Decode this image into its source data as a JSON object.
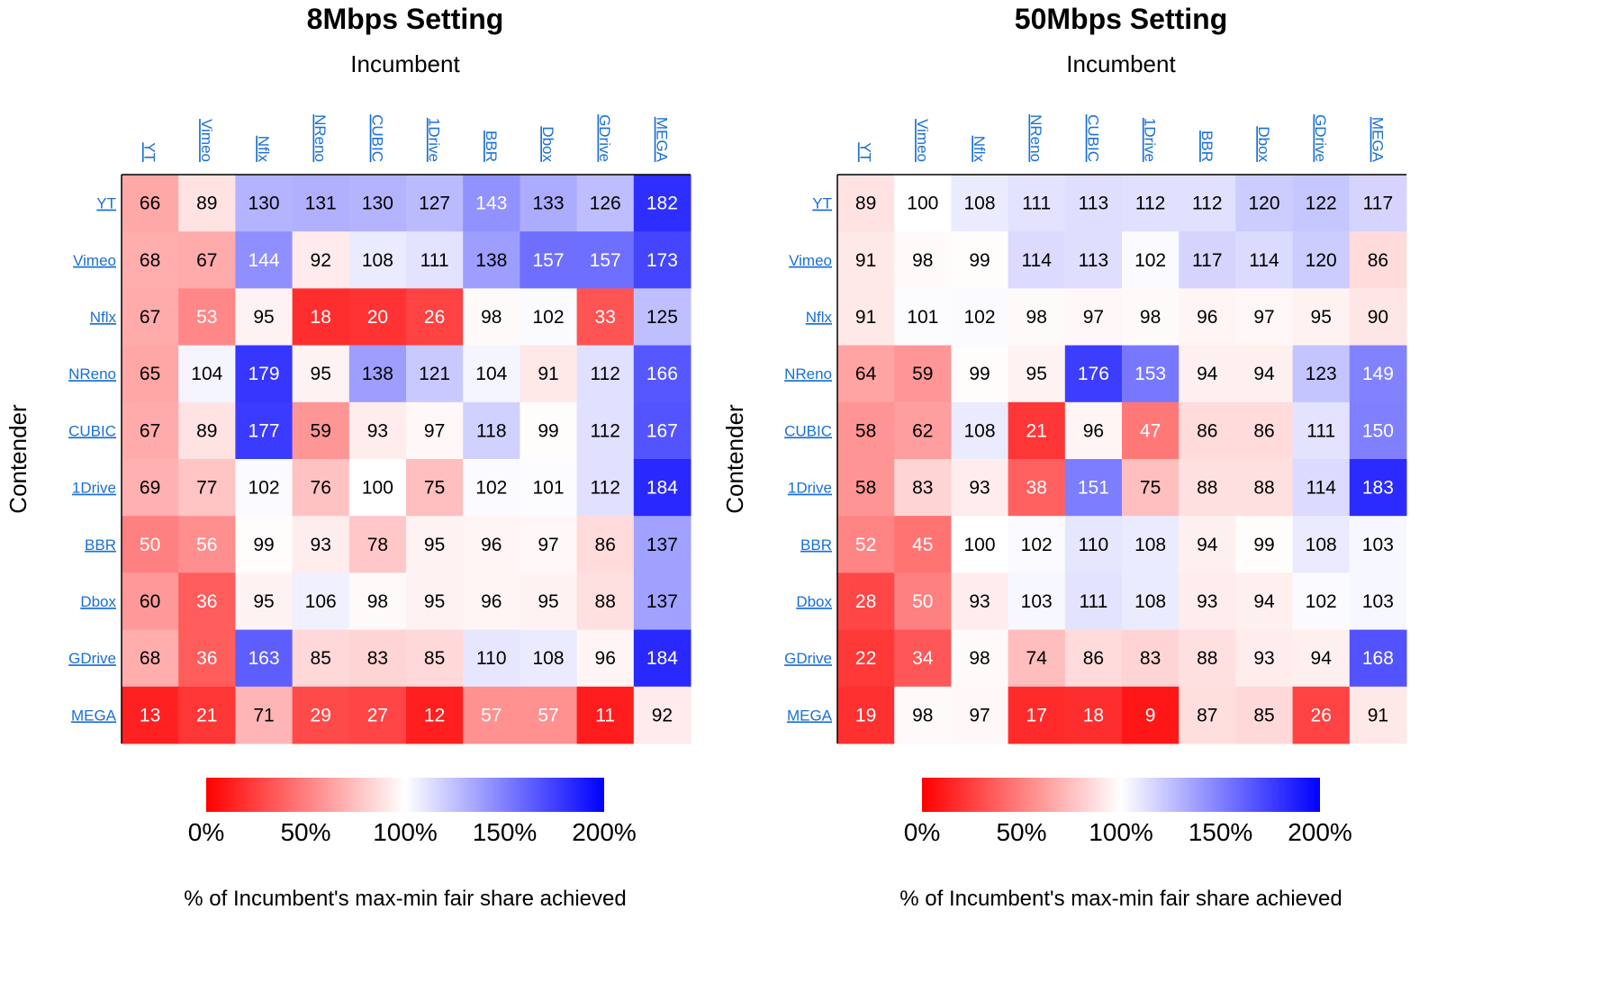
{
  "chart_data": [
    {
      "type": "heatmap",
      "title": "8Mbps Setting",
      "xlabel": "Incumbent",
      "ylabel": "Contender",
      "x_categories": [
        "YT",
        "Vimeo",
        "Nflx",
        "NReno",
        "CUBIC",
        "1Drive",
        "BBR",
        "Dbox",
        "GDrive",
        "MEGA"
      ],
      "y_categories": [
        "YT",
        "Vimeo",
        "Nflx",
        "NReno",
        "CUBIC",
        "1Drive",
        "BBR",
        "Dbox",
        "GDrive",
        "MEGA"
      ],
      "values": [
        [
          66,
          89,
          130,
          131,
          130,
          127,
          143,
          133,
          126,
          182
        ],
        [
          68,
          67,
          144,
          92,
          108,
          111,
          138,
          157,
          157,
          173
        ],
        [
          67,
          53,
          95,
          18,
          20,
          26,
          98,
          102,
          33,
          125
        ],
        [
          65,
          104,
          179,
          95,
          138,
          121,
          104,
          91,
          112,
          166
        ],
        [
          67,
          89,
          177,
          59,
          93,
          97,
          118,
          99,
          112,
          167
        ],
        [
          69,
          77,
          102,
          76,
          100,
          75,
          102,
          101,
          112,
          184
        ],
        [
          50,
          56,
          99,
          93,
          78,
          95,
          96,
          97,
          86,
          137
        ],
        [
          60,
          36,
          95,
          106,
          98,
          95,
          96,
          95,
          88,
          137
        ],
        [
          68,
          36,
          163,
          85,
          83,
          85,
          110,
          108,
          96,
          184
        ],
        [
          13,
          21,
          71,
          29,
          27,
          12,
          57,
          57,
          11,
          92
        ]
      ],
      "colorbar": {
        "range": [
          0,
          200
        ],
        "ticks": [
          "0%",
          "50%",
          "100%",
          "150%",
          "200%"
        ],
        "label": "% of Incumbent's max-min fair share achieved",
        "colors": {
          "low": "#ff0000",
          "mid": "#ffffff",
          "high": "#0000ff"
        }
      }
    },
    {
      "type": "heatmap",
      "title": "50Mbps Setting",
      "xlabel": "Incumbent",
      "ylabel": "Contender",
      "x_categories": [
        "YT",
        "Vimeo",
        "Nflx",
        "NReno",
        "CUBIC",
        "1Drive",
        "BBR",
        "Dbox",
        "GDrive",
        "MEGA"
      ],
      "y_categories": [
        "YT",
        "Vimeo",
        "Nflx",
        "NReno",
        "CUBIC",
        "1Drive",
        "BBR",
        "Dbox",
        "GDrive",
        "MEGA"
      ],
      "values": [
        [
          89,
          100,
          108,
          111,
          113,
          112,
          112,
          120,
          122,
          117
        ],
        [
          91,
          98,
          99,
          114,
          113,
          102,
          117,
          114,
          120,
          86
        ],
        [
          91,
          101,
          102,
          98,
          97,
          98,
          96,
          97,
          95,
          90
        ],
        [
          64,
          59,
          99,
          95,
          176,
          153,
          94,
          94,
          123,
          149
        ],
        [
          58,
          62,
          108,
          21,
          96,
          47,
          86,
          86,
          111,
          150
        ],
        [
          58,
          83,
          93,
          38,
          151,
          75,
          88,
          88,
          114,
          183
        ],
        [
          52,
          45,
          100,
          102,
          110,
          108,
          94,
          99,
          108,
          103
        ],
        [
          28,
          50,
          93,
          103,
          111,
          108,
          93,
          94,
          102,
          103
        ],
        [
          22,
          34,
          98,
          74,
          86,
          83,
          88,
          93,
          94,
          168
        ],
        [
          19,
          98,
          97,
          17,
          18,
          9,
          87,
          85,
          26,
          91
        ]
      ],
      "colorbar": {
        "range": [
          0,
          200
        ],
        "ticks": [
          "0%",
          "50%",
          "100%",
          "150%",
          "200%"
        ],
        "label": "% of Incumbent's max-min fair share achieved",
        "colors": {
          "low": "#ff0000",
          "mid": "#ffffff",
          "high": "#0000ff"
        }
      }
    }
  ]
}
